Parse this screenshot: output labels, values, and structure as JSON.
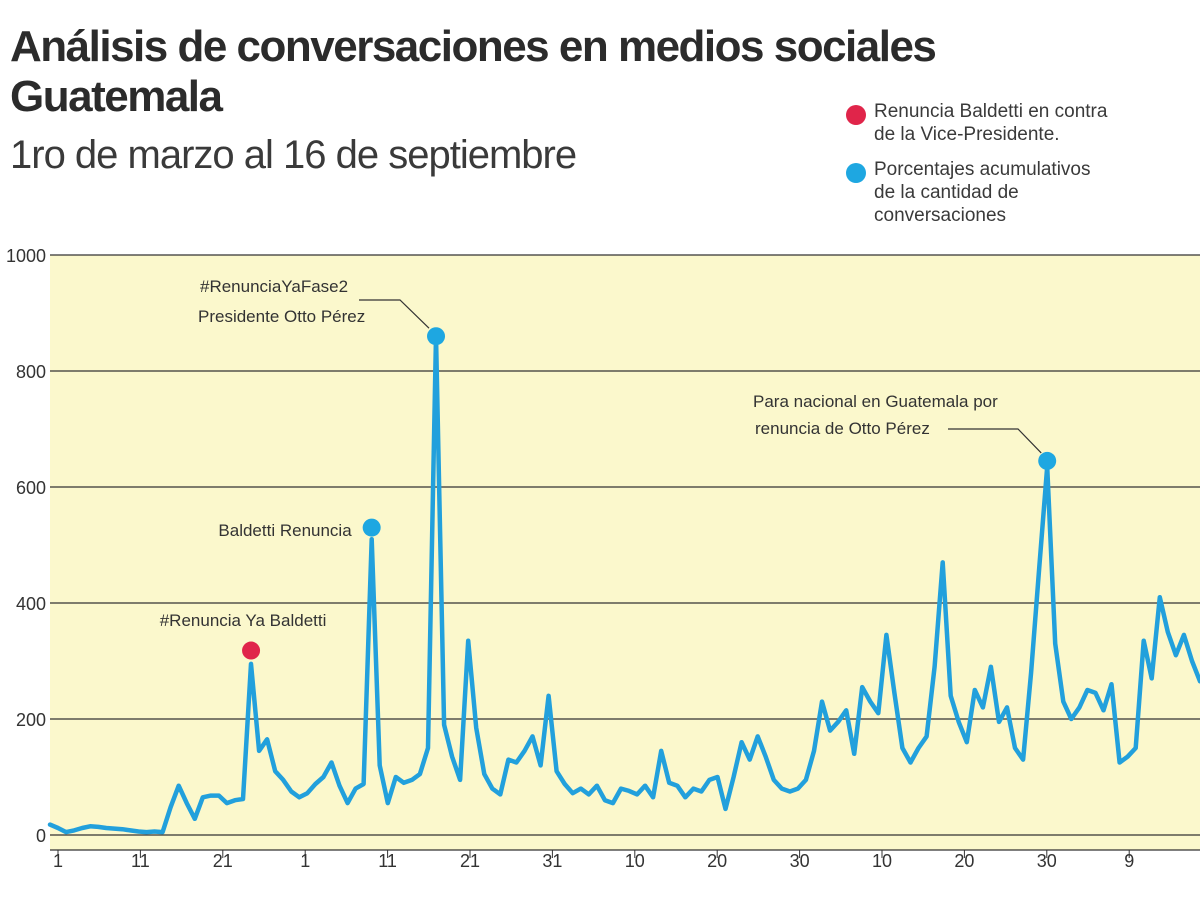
{
  "title_line1": "Análisis de conversaciones en medios sociales",
  "title_line2": "Guatemala",
  "subtitle": "1ro de marzo al 16 de septiembre",
  "legend": [
    {
      "label": "Renuncia Baldetti en contra\nde la Vice-Presidente.",
      "color": "#e0254a"
    },
    {
      "label": "Porcentajes acumulativos\nde la cantidad de\nconversaciones",
      "color": "#1ea7e1"
    }
  ],
  "colors": {
    "background": "#fbf8cc",
    "line": "#22a0dc",
    "red_dot": "#e0254a",
    "blue_dot": "#1ea7e1",
    "gridline": "#333333"
  },
  "chart_data": {
    "type": "line",
    "title": "Análisis de conversaciones en medios sociales Guatemala",
    "subtitle": "1ro de marzo al 16 de septiembre",
    "ylim": [
      0,
      1000
    ],
    "yticks": [
      0,
      200,
      400,
      600,
      800,
      1000
    ],
    "xticks": [
      "1",
      "11",
      "21",
      "1",
      "11",
      "21",
      "31",
      "10",
      "20",
      "30",
      "10",
      "20",
      "30",
      "9"
    ],
    "x_start": "1 mar",
    "x_end": "16 sep",
    "grid": true,
    "series": [
      {
        "values": [
          18,
          12,
          5,
          8,
          12,
          15,
          14,
          12,
          11,
          10,
          8,
          6,
          5,
          6,
          5,
          48,
          85,
          55,
          28,
          65,
          68,
          68,
          55,
          60,
          62,
          295,
          145,
          165,
          110,
          95,
          75,
          65,
          72,
          88,
          100,
          125,
          85,
          55,
          80,
          88,
          510,
          120,
          55,
          100,
          90,
          95,
          105,
          150,
          860,
          190,
          135,
          95,
          335,
          185,
          105,
          80,
          70,
          130,
          125,
          145,
          170,
          120,
          240,
          110,
          88,
          72,
          80,
          70,
          85,
          60,
          55,
          80,
          76,
          70,
          85,
          65,
          145,
          90,
          85,
          65,
          80,
          75,
          95,
          100,
          45,
          100,
          160,
          130,
          170,
          135,
          95,
          80,
          75,
          80,
          95,
          145,
          230,
          180,
          195,
          215,
          140,
          255,
          230,
          210,
          345,
          245,
          150,
          125,
          150,
          170,
          290,
          470,
          240,
          195,
          160,
          250,
          220,
          290,
          195,
          220,
          150,
          130,
          280,
          460,
          635,
          330,
          230,
          200,
          220,
          250,
          245,
          215,
          260,
          125,
          135,
          150,
          335,
          270,
          410,
          350,
          310,
          345,
          300,
          265
        ]
      }
    ],
    "markers": [
      {
        "x_index": 25,
        "value": 318,
        "color": "red",
        "label": "#Renuncia Ya Baldetti"
      },
      {
        "x_index": 40,
        "value": 530,
        "color": "blue",
        "label": "Baldetti Renuncia"
      },
      {
        "x_index": 48,
        "value": 860,
        "color": "blue",
        "label": "#RenunciaYaFase2\nPresidente Otto Pérez"
      },
      {
        "x_index": 124,
        "value": 645,
        "color": "blue",
        "label": "Para nacional en Guatemala por\nrenuncia de Otto Pérez"
      }
    ]
  }
}
